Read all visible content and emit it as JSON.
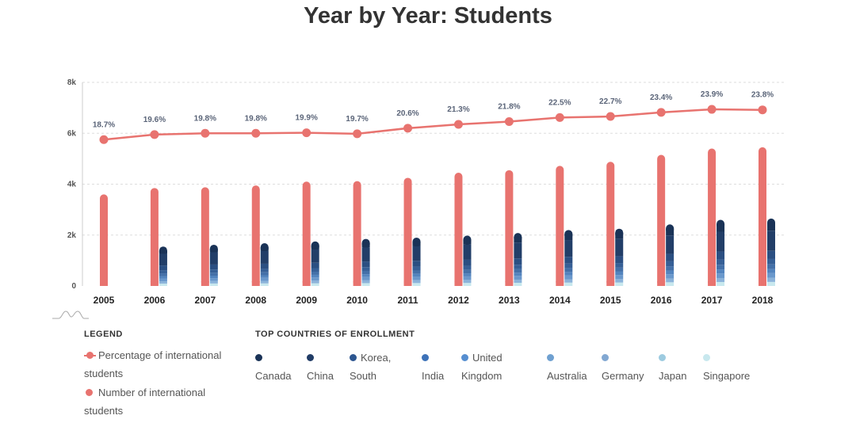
{
  "title": "Year by Year: Students",
  "colors": {
    "line": "#e8736f",
    "bars": "#e8736f",
    "grid": "#dddddd",
    "countries": [
      "#1a3357",
      "#213c66",
      "#2d5690",
      "#3d72b8",
      "#568ed0",
      "#6fa0d0",
      "#82a8d2",
      "#9dcbe0",
      "#c8e8ee"
    ]
  },
  "legend": {
    "heading": "LEGEND",
    "items": [
      {
        "label_line1": "Percentage of international",
        "label_line2": "students",
        "marker": "line-dot-icon"
      },
      {
        "label_line1": "Number of international",
        "label_line2": "students",
        "marker": "dot-icon"
      }
    ]
  },
  "countries_legend": {
    "heading": "TOP COUNTRIES OF ENROLLMENT",
    "items": [
      {
        "line1": "",
        "line2": "Canada"
      },
      {
        "line1": "",
        "line2": "China"
      },
      {
        "line1": "Korea,",
        "line2": "South"
      },
      {
        "line1": "",
        "line2": "India"
      },
      {
        "line1": "United",
        "line2": "Kingdom"
      },
      {
        "line1": "",
        "line2": "Australia"
      },
      {
        "line1": "",
        "line2": "Germany"
      },
      {
        "line1": "",
        "line2": "Japan"
      },
      {
        "line1": "",
        "line2": "Singapore"
      }
    ]
  },
  "chart_data": {
    "type": "bar",
    "categories": [
      "2005",
      "2006",
      "2007",
      "2008",
      "2009",
      "2010",
      "2011",
      "2012",
      "2013",
      "2014",
      "2015",
      "2016",
      "2017",
      "2018"
    ],
    "yticks": [
      "0",
      "2k",
      "4k",
      "6k",
      "8k"
    ],
    "ylim": [
      0,
      8000
    ],
    "grid": true,
    "series": [
      {
        "name": "Number of international students",
        "kind": "bar",
        "values": [
          3600,
          3850,
          3880,
          3950,
          4100,
          4120,
          4250,
          4450,
          4550,
          4720,
          4880,
          5150,
          5400,
          5450
        ]
      },
      {
        "name": "Top countries of enrollment",
        "kind": "stacked-bar",
        "values": [
          0,
          1550,
          1620,
          1680,
          1750,
          1850,
          1900,
          1980,
          2080,
          2200,
          2250,
          2420,
          2600,
          2650
        ]
      },
      {
        "name": "Percentage of international students",
        "kind": "line",
        "values": [
          5750,
          5950,
          6000,
          6000,
          6020,
          5980,
          6200,
          6350,
          6460,
          6620,
          6660,
          6820,
          6940,
          6920
        ],
        "labels": [
          "18.7%",
          "19.6%",
          "19.8%",
          "19.8%",
          "19.9%",
          "19.7%",
          "20.6%",
          "21.3%",
          "21.8%",
          "22.5%",
          "22.7%",
          "23.4%",
          "23.9%",
          "23.8%"
        ]
      }
    ]
  }
}
